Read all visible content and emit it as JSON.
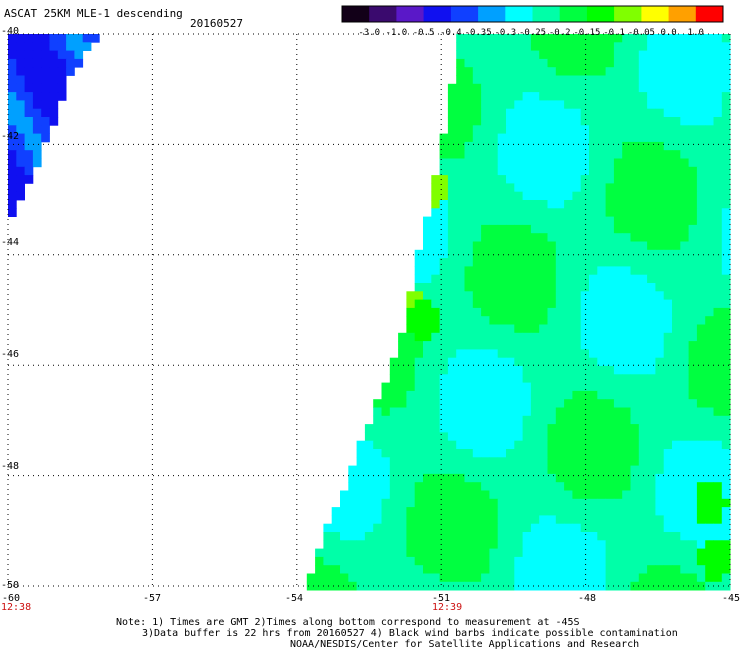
{
  "header": {
    "title": "ASCAT 25KM MLE-1 descending",
    "date": "20160527"
  },
  "colorbar": {
    "labels": [
      "-3.0",
      "-1.0",
      "-0.5",
      "-0.4",
      "-0.35",
      "-0.3",
      "-0.25",
      "-0.2",
      "-0.15",
      "-0.1",
      "-0.05",
      "0.0",
      "1.0"
    ],
    "colors": [
      "#120018",
      "#3a0a6e",
      "#5a18c8",
      "#1010f0",
      "#1040ff",
      "#00a0ff",
      "#00ffff",
      "#00ffa8",
      "#00ff40",
      "#00ff00",
      "#80ff00",
      "#ffff00",
      "#ffa000",
      "#ff0000"
    ]
  },
  "axes": {
    "x_ticks": [
      "-60",
      "-57",
      "-54",
      "-51",
      "-48",
      "-45"
    ],
    "y_ticks": [
      "-40",
      "-42",
      "-44",
      "-46",
      "-48",
      "-50"
    ],
    "time_left": "12:38",
    "time_mid": "12:39"
  },
  "footer": {
    "line1": "Note: 1) Times are GMT 2)Times along bottom correspond to measurement at -45S",
    "line2": "3)Data buffer is 22 hrs from 20160527 4) Black wind barbs indicate possible contamination",
    "line3": "NOAA/NESDIS/Center for Satellite Applications and Research"
  },
  "chart_data": {
    "type": "heatmap",
    "title": "ASCAT 25KM MLE-1 descending",
    "subtitle": "20160527",
    "xlim": [
      -60,
      -45
    ],
    "ylim": [
      -50,
      -40
    ],
    "x_ticks": [
      -60,
      -57,
      -54,
      -51,
      -48,
      -45
    ],
    "y_ticks": [
      -40,
      -42,
      -44,
      -46,
      -48,
      -50
    ],
    "grid": true,
    "colorbar_levels": [
      -3.0,
      -1.0,
      -0.5,
      -0.4,
      -0.35,
      -0.3,
      -0.25,
      -0.2,
      -0.15,
      -0.1,
      -0.05,
      0.0,
      1.0
    ],
    "swath_left": {
      "edge_lat": [
        -40.0,
        -40.8,
        -41.6,
        -42.4,
        -43.2
      ],
      "edge_lon": [
        -58.2,
        -58.8,
        -59.1,
        -59.5,
        -59.9
      ],
      "value": -0.4
    },
    "swath_right": {
      "edge_lat": [
        -40.0,
        -41.0,
        -42.0,
        -43.0,
        -44.0,
        -45.0,
        -46.0,
        -47.0,
        -48.0,
        -49.0,
        -50.0
      ],
      "edge_lon": [
        -50.6,
        -50.8,
        -51.0,
        -51.2,
        -51.5,
        -51.7,
        -52.0,
        -52.5,
        -52.9,
        -53.4,
        -53.8
      ],
      "value_range": [
        -0.3,
        -0.15
      ],
      "hotspots": [
        {
          "lat": -42.8,
          "lon": -51.2,
          "value": -0.05
        },
        {
          "lat": -45.0,
          "lon": -51.6,
          "value": -0.05
        },
        {
          "lat": -45.2,
          "lon": -51.4,
          "value": -0.1
        },
        {
          "lat": -48.5,
          "lon": -45.4,
          "value": -0.1
        },
        {
          "lat": -49.5,
          "lon": -45.3,
          "value": -0.1
        }
      ]
    }
  }
}
